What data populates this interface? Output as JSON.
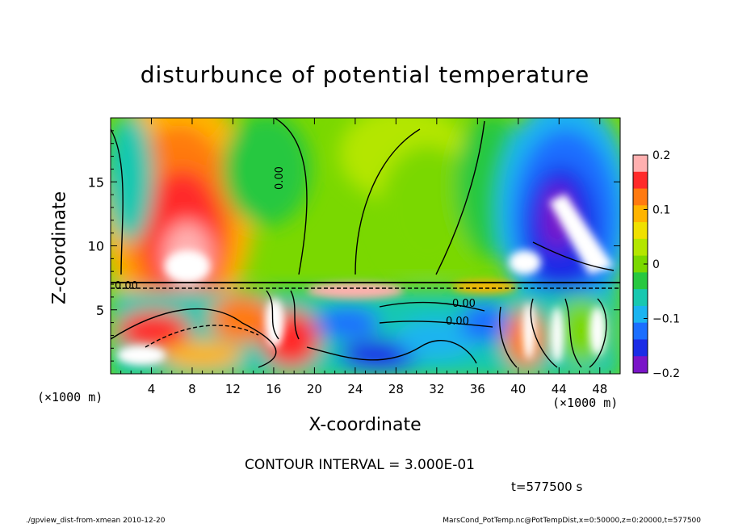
{
  "chart_data": {
    "type": "heatmap",
    "title": "disturbunce of potential temperature",
    "xlabel": "X-coordinate",
    "ylabel": "Z-coordinate",
    "x_unit": "(×1000 m)",
    "x_unit_right": "(×1000 m)",
    "xlim": [
      0,
      50
    ],
    "ylim": [
      0,
      20
    ],
    "x_ticks": [
      "4",
      "8",
      "12",
      "16",
      "20",
      "24",
      "28",
      "32",
      "36",
      "40",
      "44",
      "48"
    ],
    "y_ticks": [
      "5",
      "10",
      "15"
    ],
    "colorbar": {
      "range": [
        -0.2,
        0.2
      ],
      "tick_labels": [
        "0.2",
        "0.1",
        "0",
        "−0.1",
        "−0.2"
      ],
      "colors": [
        "#ffb0b0",
        "#ff2a2a",
        "#ff7a10",
        "#ffb400",
        "#f0e000",
        "#b4e600",
        "#7ad800",
        "#28c840",
        "#18c8b0",
        "#1ab4f0",
        "#1a6eff",
        "#1a2ce6",
        "#7a14c8"
      ]
    },
    "contour_labels": [
      "0.00",
      "0.00",
      "0.00",
      "0.00"
    ],
    "contour_interval": "CONTOUR INTERVAL = 3.000E-01",
    "time": "t=577500 s",
    "footer_left": "./gpview_dist-from-xmean  2010-12-20",
    "footer_right": "MarsCond_PotTemp.nc@PotTempDist,x=0:50000,z=0:20000,t=577500"
  }
}
